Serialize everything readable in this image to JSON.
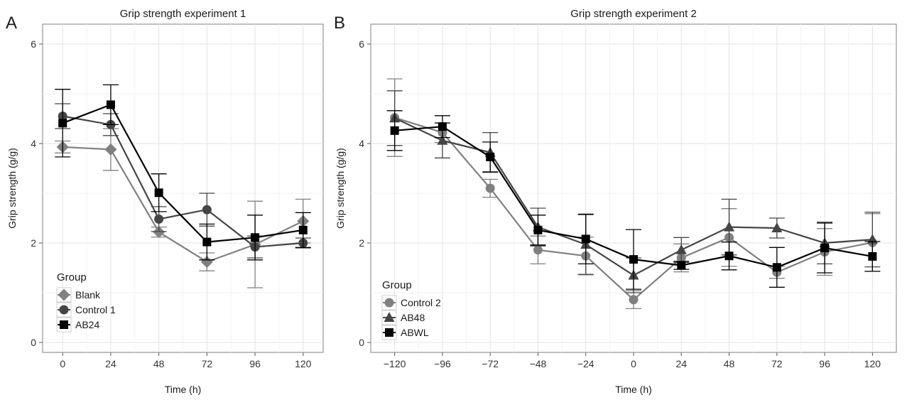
{
  "panels": [
    {
      "letter": "A",
      "chart_data": {
        "type": "line",
        "title": "Grip strength experiment 1",
        "xlabel": "Time (h)",
        "ylabel": "Grip strength (g/g)",
        "x": [
          0,
          24,
          48,
          72,
          96,
          120
        ],
        "xticks": [
          "0",
          "24",
          "48",
          "72",
          "96",
          "120"
        ],
        "xlim": [
          -10,
          130
        ],
        "ylim": [
          -0.2,
          6.4
        ],
        "yticks": [
          "0",
          "2",
          "4",
          "6"
        ],
        "ytick_values": [
          0,
          2,
          4,
          6
        ],
        "grid": true,
        "legend": {
          "title": "Group",
          "position": "bottom-left"
        },
        "series": [
          {
            "name": "Blank",
            "marker": "diamond",
            "color": "#808080",
            "values": [
              3.93,
              3.88,
              2.22,
              1.62,
              1.97,
              2.44
            ],
            "error": [
              0.12,
              0.42,
              0.1,
              0.18,
              0.87,
              0.44
            ]
          },
          {
            "name": "Control 1",
            "marker": "circle",
            "color": "#454545",
            "values": [
              4.55,
              4.38,
              2.48,
              2.67,
              1.92,
              2.0
            ],
            "error": [
              0.25,
              0.22,
              0.25,
              0.33,
              0.22,
              0.1
            ]
          },
          {
            "name": "AB24",
            "marker": "square",
            "color": "#000000",
            "values": [
              4.41,
              4.78,
              3.01,
              2.02,
              2.11,
              2.26
            ],
            "error": [
              0.68,
              0.4,
              0.38,
              0.36,
              0.45,
              0.35
            ]
          }
        ]
      }
    },
    {
      "letter": "B",
      "chart_data": {
        "type": "line",
        "title": "Grip strength experiment 2",
        "xlabel": "Time (h)",
        "ylabel": "Grip strength (g/g)",
        "x": [
          -120,
          -96,
          -72,
          -48,
          -24,
          0,
          24,
          48,
          72,
          96,
          120
        ],
        "xticks": [
          "−120",
          "−96",
          "−72",
          "−48",
          "−24",
          "0",
          "24",
          "48",
          "72",
          "96",
          "120"
        ],
        "xlim": [
          -132,
          132
        ],
        "ylim": [
          -0.2,
          6.4
        ],
        "yticks": [
          "0",
          "2",
          "4",
          "6"
        ],
        "ytick_values": [
          0,
          2,
          4,
          6
        ],
        "grid": true,
        "legend": {
          "title": "Group",
          "position": "bottom-left"
        },
        "series": [
          {
            "name": "Control 2",
            "marker": "circle",
            "color": "#808080",
            "values": [
              4.52,
              4.22,
              3.1,
              1.86,
              1.74,
              0.86,
              1.7,
              2.11,
              1.41,
              1.82,
              2.01
            ],
            "error": [
              0.78,
              0.2,
              0.18,
              0.28,
              0.38,
              0.18,
              0.28,
              0.58,
              0.12,
              0.47,
              0.58
            ]
          },
          {
            "name": "AB48",
            "marker": "triangle",
            "color": "#454545",
            "values": [
              4.51,
              4.06,
              3.82,
              2.32,
              1.97,
              1.35,
              1.86,
              2.32,
              2.3,
              2.0,
              2.07
            ],
            "error": [
              0.55,
              0.35,
              0.4,
              0.38,
              0.6,
              0.35,
              0.25,
              0.56,
              0.2,
              0.42,
              0.55
            ]
          },
          {
            "name": "ABWL",
            "marker": "square",
            "color": "#000000",
            "values": [
              4.26,
              4.34,
              3.73,
              2.26,
              2.08,
              1.67,
              1.55,
              1.74,
              1.51,
              1.9,
              1.73
            ],
            "error": [
              0.4,
              0.22,
              0.3,
              0.3,
              0.5,
              0.6,
              0.08,
              0.28,
              0.4,
              0.5,
              0.3
            ]
          }
        ]
      }
    }
  ]
}
